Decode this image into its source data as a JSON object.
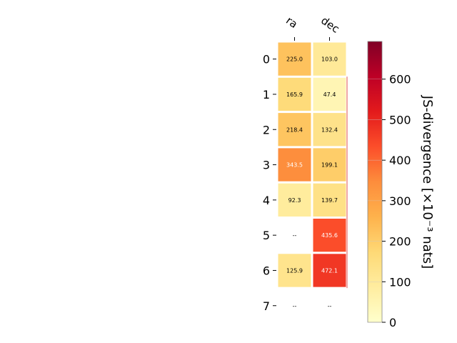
{
  "chart_data": {
    "type": "heatmap",
    "title": "",
    "columns": [
      "ra",
      "dec"
    ],
    "rows": [
      "0",
      "1",
      "2",
      "3",
      "4",
      "5",
      "6",
      "7"
    ],
    "values": [
      [
        225.0,
        103.0
      ],
      [
        165.9,
        47.4
      ],
      [
        218.4,
        132.4
      ],
      [
        343.5,
        199.1
      ],
      [
        92.3,
        139.7
      ],
      [
        null,
        435.6
      ],
      [
        125.9,
        472.1
      ],
      [
        null,
        null
      ]
    ],
    "cell_labels": [
      [
        "225.0",
        "103.0"
      ],
      [
        "165.9",
        "47.4"
      ],
      [
        "218.4",
        "132.4"
      ],
      [
        "343.5",
        "199.1"
      ],
      [
        "92.3",
        "139.7"
      ],
      [
        "--",
        "435.6"
      ],
      [
        "125.9",
        "472.1"
      ],
      [
        "--",
        "--"
      ]
    ],
    "colorbar": {
      "label": "JS-divergence [×10⁻³ nats]",
      "min": 0,
      "max": 693,
      "ticks": [
        0,
        100,
        200,
        300,
        400,
        500,
        600
      ],
      "colormap": "YlOrRd"
    },
    "colors": {
      "colormap_stops": [
        "#ffffcc",
        "#ffeda0",
        "#fed976",
        "#feb24c",
        "#fd8d3c",
        "#fc4e2a",
        "#e31a1c",
        "#bd0026",
        "#800026"
      ],
      "dark_label": "#000000",
      "light_label": "#ffffff"
    }
  }
}
